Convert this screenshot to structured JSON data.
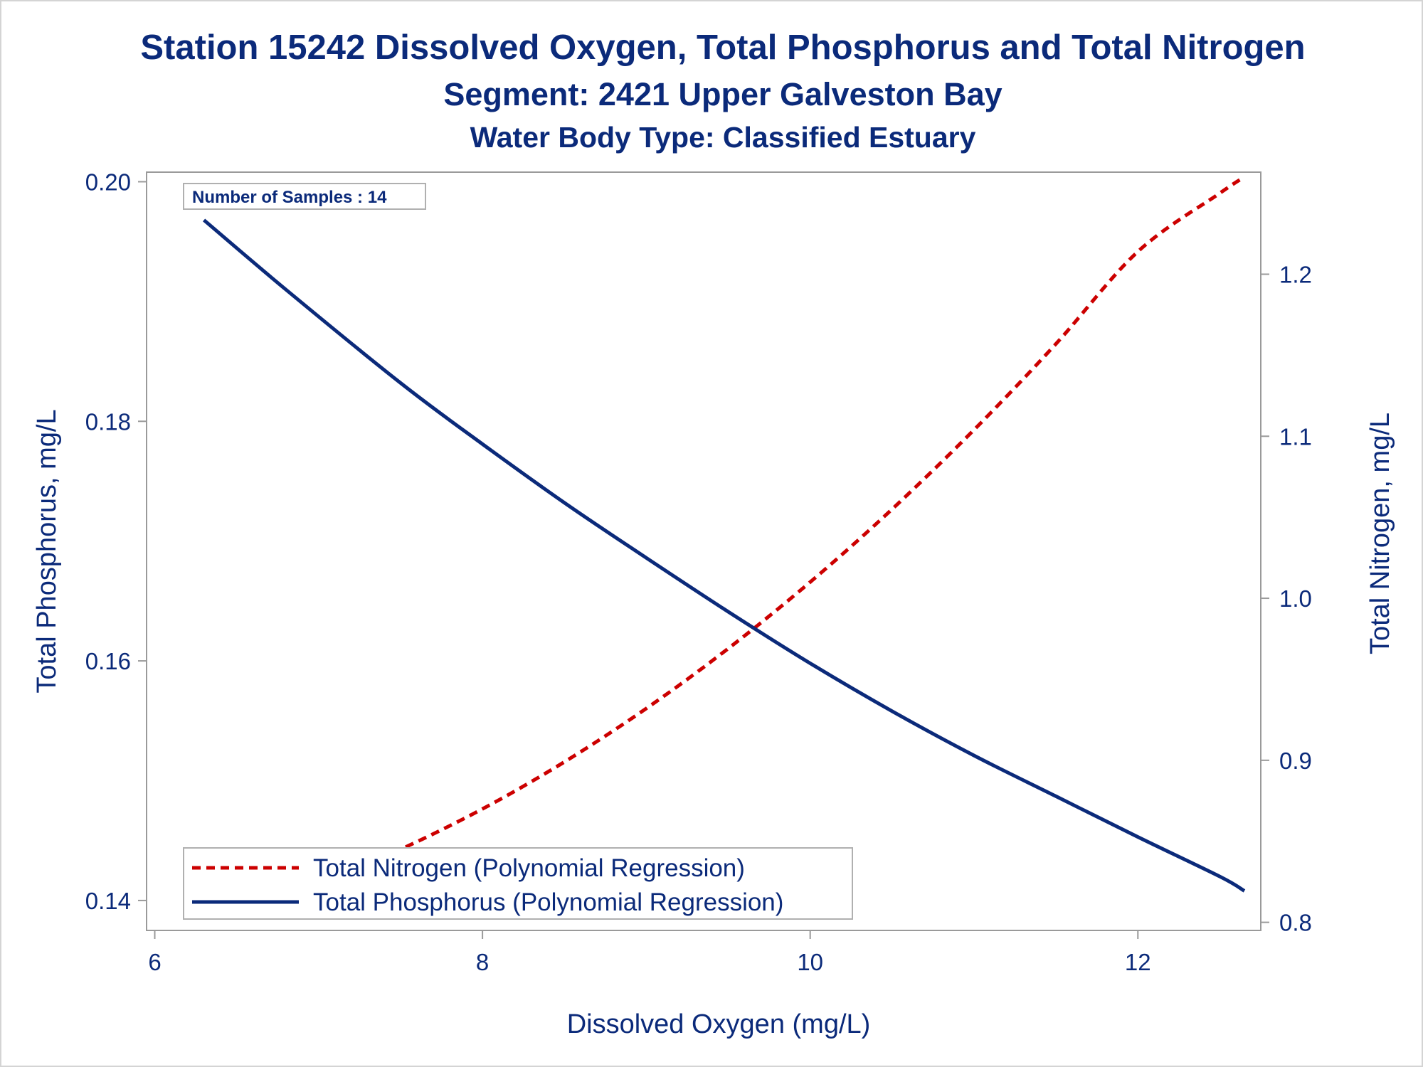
{
  "chart_data": {
    "type": "line",
    "title": "Station 15242  Dissolved Oxygen, Total Phosphorus and Total Nitrogen",
    "subtitle": "Segment: 2421  Upper Galveston Bay",
    "subtitle2": "Water Body Type: Classified Estuary",
    "xlabel": "Dissolved Oxygen (mg/L)",
    "ylabel_left": "Total Phosphorus, mg/L",
    "ylabel_right": "Total Nitrogen, mg/L",
    "xlim": [
      5.95,
      12.75
    ],
    "ylim_left": [
      0.1375,
      0.2008
    ],
    "ylim_right": [
      0.795,
      1.263
    ],
    "x_ticks": [
      6,
      8,
      10,
      12
    ],
    "x_tick_labels": [
      "6",
      "8",
      "10",
      "12"
    ],
    "y_left_ticks": [
      0.14,
      0.16,
      0.18,
      0.2
    ],
    "y_left_tick_labels": [
      "0.14",
      "0.16",
      "0.18",
      "0.20"
    ],
    "y_right_ticks": [
      0.8,
      0.9,
      1.0,
      1.1,
      1.2
    ],
    "y_right_tick_labels": [
      "0.8",
      "0.9",
      "1.0",
      "1.1",
      "1.2"
    ],
    "annotation": "Number of Samples : 14",
    "legend_position": "bottom-left",
    "grid": false,
    "series": [
      {
        "name": "Total Nitrogen (Polynomial Regression)",
        "axis": "right",
        "style": "dashed",
        "color": "#cc0000",
        "x": [
          6.3,
          7.0,
          7.5,
          8.0,
          8.5,
          9.0,
          9.5,
          10.0,
          10.5,
          11.0,
          11.5,
          12.0,
          12.5,
          12.65
        ],
        "y": [
          0.805,
          0.823,
          0.845,
          0.87,
          0.899,
          0.932,
          0.969,
          1.01,
          1.055,
          1.104,
          1.157,
          1.214,
          1.25,
          1.26
        ]
      },
      {
        "name": "Total Phosphorus (Polynomial Regression)",
        "axis": "left",
        "style": "solid",
        "color": "#0b2a7a",
        "x": [
          6.3,
          6.8,
          7.5,
          8.0,
          8.5,
          9.0,
          9.5,
          10.0,
          10.5,
          11.0,
          11.5,
          12.0,
          12.5,
          12.65
        ],
        "y": [
          0.1968,
          0.191,
          0.1832,
          0.1781,
          0.1732,
          0.1686,
          0.1641,
          0.1598,
          0.1558,
          0.1521,
          0.1487,
          0.1453,
          0.142,
          0.1408
        ]
      }
    ]
  }
}
